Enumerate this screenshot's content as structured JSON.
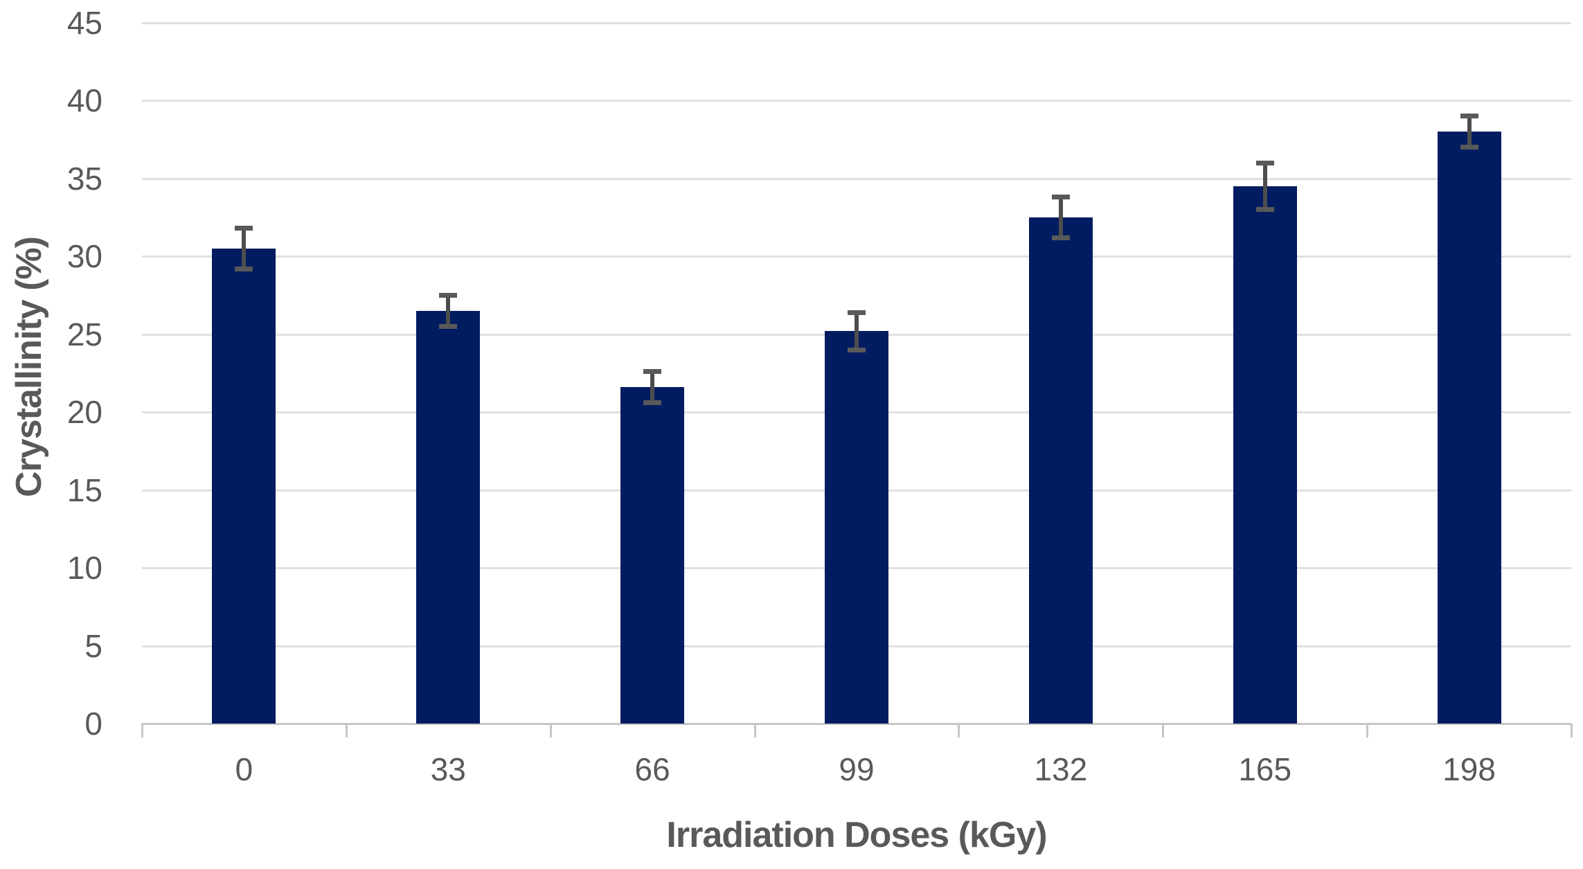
{
  "chart_data": {
    "type": "bar",
    "title": "",
    "xlabel": "Irradiation Doses (kGy)",
    "ylabel": "Crystallinity (%)",
    "categories": [
      "0",
      "33",
      "66",
      "99",
      "132",
      "165",
      "198"
    ],
    "series": [
      {
        "name": "Crystallinity",
        "values": [
          30.5,
          26.5,
          21.6,
          25.2,
          32.5,
          34.5,
          38.0
        ],
        "error_bars": [
          1.3,
          1.0,
          1.0,
          1.2,
          1.3,
          1.5,
          1.0
        ]
      }
    ],
    "ylim": [
      0,
      45
    ],
    "yticks": [
      0,
      5,
      10,
      15,
      20,
      25,
      30,
      35,
      40,
      45
    ],
    "grid": "horizontal",
    "legend": "none",
    "colors": {
      "bar": "#021c61",
      "error_bar": "#4d4d4d",
      "gridline": "#e0e0e0",
      "axis_line": "#c6c6c6",
      "text": "#595959",
      "background": "#ffffff"
    }
  }
}
